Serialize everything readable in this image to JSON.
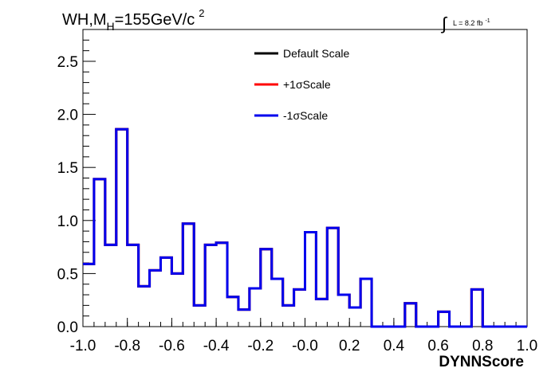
{
  "chart_data": {
    "type": "histogram-step",
    "title": {
      "prefix": "WH,M",
      "subscript": "H",
      "main": "=155GeV/c",
      "superscript": "2"
    },
    "luminosity": {
      "symbol": "∫",
      "text": "L = 8.2 fb",
      "superscript": "-1"
    },
    "xlabel": "DYNNScore",
    "ylabel": "",
    "xlim": [
      -1.0,
      1.0
    ],
    "ylim": [
      0.0,
      2.8
    ],
    "xticks": [
      -1.0,
      -0.8,
      -0.6,
      -0.4,
      -0.2,
      0.0,
      0.2,
      0.4,
      0.6,
      0.8,
      1.0
    ],
    "xtick_labels": [
      "-1.0",
      "-0.8",
      "-0.6",
      "-0.4",
      "-0.2",
      "-0.0",
      "0.2",
      "0.4",
      "0.6",
      "0.8",
      "1.0"
    ],
    "yticks": [
      0.0,
      0.5,
      1.0,
      1.5,
      2.0,
      2.5
    ],
    "ytick_labels": [
      "0.0",
      "0.5",
      "1.0",
      "1.5",
      "2.0",
      "2.5"
    ],
    "bin_edges": [
      -1.0,
      -0.95,
      -0.9,
      -0.85,
      -0.8,
      -0.75,
      -0.7,
      -0.65,
      -0.6,
      -0.55,
      -0.5,
      -0.45,
      -0.4,
      -0.35,
      -0.3,
      -0.25,
      -0.2,
      -0.15,
      -0.1,
      -0.05,
      0.0,
      0.05,
      0.1,
      0.15,
      0.2,
      0.25,
      0.3,
      0.35,
      0.4,
      0.45,
      0.5,
      0.55,
      0.6,
      0.65,
      0.7,
      0.75,
      0.8,
      0.85,
      0.9,
      0.95,
      1.0
    ],
    "legend_position": "top-center",
    "series": [
      {
        "name": "Default Scale",
        "color": "#000000",
        "values": [
          0.59,
          1.39,
          0.77,
          1.86,
          0.77,
          0.38,
          0.53,
          0.65,
          0.5,
          0.97,
          0.2,
          0.77,
          0.79,
          0.28,
          0.16,
          0.36,
          0.73,
          0.45,
          0.2,
          0.35,
          0.89,
          0.26,
          0.93,
          0.3,
          0.18,
          0.45,
          0.0,
          0.0,
          0.0,
          0.22,
          0.0,
          0.0,
          0.14,
          0.0,
          0.0,
          0.35,
          0.0,
          0.0,
          0.0,
          0.0
        ]
      },
      {
        "name": "+1σScale",
        "color": "#ff0000",
        "values": [
          0.59,
          1.39,
          0.77,
          1.86,
          0.77,
          0.38,
          0.53,
          0.65,
          0.5,
          0.97,
          0.2,
          0.77,
          0.79,
          0.28,
          0.16,
          0.36,
          0.73,
          0.45,
          0.2,
          0.35,
          0.89,
          0.26,
          0.93,
          0.3,
          0.18,
          0.45,
          0.0,
          0.0,
          0.0,
          0.22,
          0.0,
          0.0,
          0.14,
          0.0,
          0.0,
          0.35,
          0.0,
          0.0,
          0.0,
          0.0
        ]
      },
      {
        "name": "-1σScale",
        "color": "#0000ee",
        "values": [
          0.59,
          1.39,
          0.77,
          1.86,
          0.77,
          0.38,
          0.53,
          0.65,
          0.5,
          0.97,
          0.2,
          0.77,
          0.79,
          0.28,
          0.16,
          0.36,
          0.73,
          0.45,
          0.2,
          0.35,
          0.89,
          0.26,
          0.93,
          0.3,
          0.18,
          0.45,
          0.0,
          0.0,
          0.0,
          0.22,
          0.0,
          0.0,
          0.14,
          0.0,
          0.0,
          0.35,
          0.0,
          0.0,
          0.0,
          0.0
        ]
      }
    ]
  }
}
